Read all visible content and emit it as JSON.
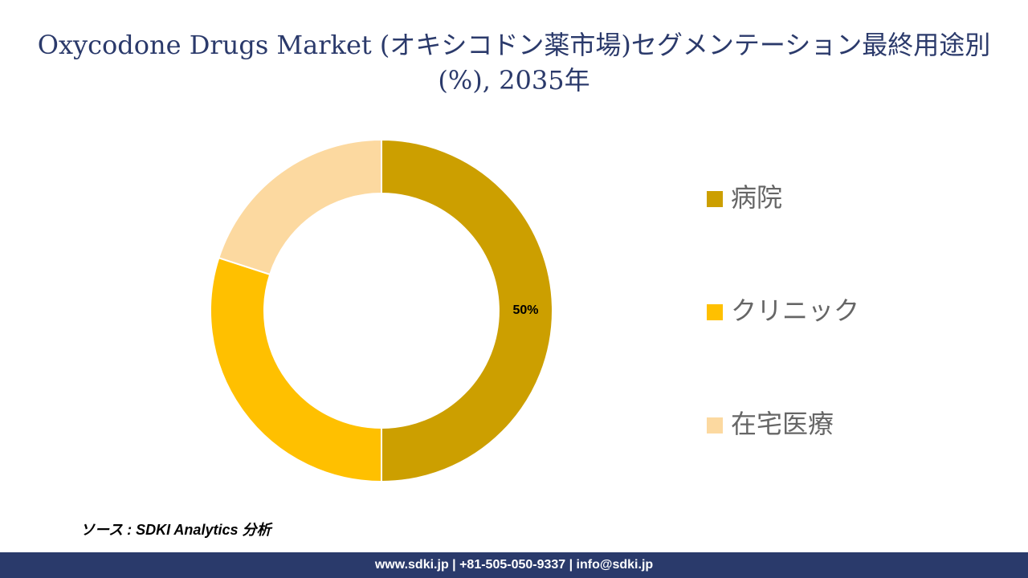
{
  "chart_data": {
    "type": "donut",
    "title": "Oxycodone Drugs Market (オキシコドン薬市場)セグメンテーション最終用途別 (%), 2035年",
    "categories": [
      "病院",
      "クリニック",
      "在宅医療"
    ],
    "values": [
      50,
      30,
      20
    ],
    "value_labels": [
      "50%",
      null,
      null
    ],
    "colors": [
      "#cc9f00",
      "#ffc000",
      "#fcd9a0"
    ],
    "source": "ソース : SDKI Analytics 分析"
  },
  "footer": {
    "contact": "www.sdki.jp | +81-505-050-9337 | info@sdki.jp"
  }
}
